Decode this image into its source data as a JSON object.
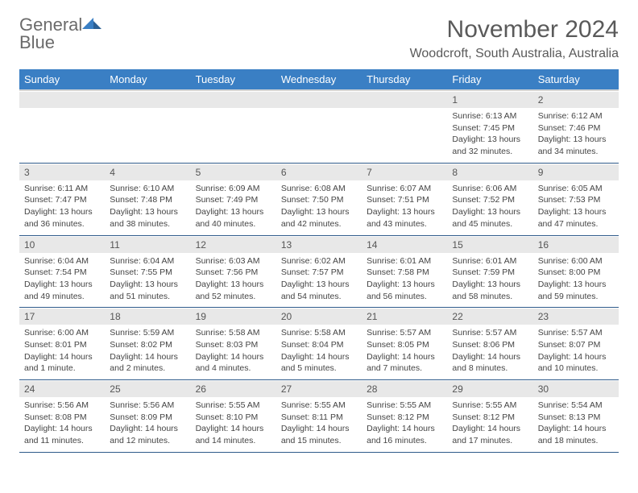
{
  "logo": {
    "word1": "General",
    "word2": "Blue"
  },
  "header": {
    "month_title": "November 2024",
    "location": "Woodcroft, South Australia, Australia"
  },
  "columns": [
    "Sunday",
    "Monday",
    "Tuesday",
    "Wednesday",
    "Thursday",
    "Friday",
    "Saturday"
  ],
  "colors": {
    "header_bg": "#3a7fc4",
    "header_text": "#ffffff",
    "daynum_bg": "#e8e8e8",
    "border": "#2f5b8a",
    "text": "#444444"
  },
  "weeks": [
    [
      null,
      null,
      null,
      null,
      null,
      {
        "n": "1",
        "sunrise": "6:13 AM",
        "sunset": "7:45 PM",
        "daylight": "13 hours and 32 minutes."
      },
      {
        "n": "2",
        "sunrise": "6:12 AM",
        "sunset": "7:46 PM",
        "daylight": "13 hours and 34 minutes."
      }
    ],
    [
      {
        "n": "3",
        "sunrise": "6:11 AM",
        "sunset": "7:47 PM",
        "daylight": "13 hours and 36 minutes."
      },
      {
        "n": "4",
        "sunrise": "6:10 AM",
        "sunset": "7:48 PM",
        "daylight": "13 hours and 38 minutes."
      },
      {
        "n": "5",
        "sunrise": "6:09 AM",
        "sunset": "7:49 PM",
        "daylight": "13 hours and 40 minutes."
      },
      {
        "n": "6",
        "sunrise": "6:08 AM",
        "sunset": "7:50 PM",
        "daylight": "13 hours and 42 minutes."
      },
      {
        "n": "7",
        "sunrise": "6:07 AM",
        "sunset": "7:51 PM",
        "daylight": "13 hours and 43 minutes."
      },
      {
        "n": "8",
        "sunrise": "6:06 AM",
        "sunset": "7:52 PM",
        "daylight": "13 hours and 45 minutes."
      },
      {
        "n": "9",
        "sunrise": "6:05 AM",
        "sunset": "7:53 PM",
        "daylight": "13 hours and 47 minutes."
      }
    ],
    [
      {
        "n": "10",
        "sunrise": "6:04 AM",
        "sunset": "7:54 PM",
        "daylight": "13 hours and 49 minutes."
      },
      {
        "n": "11",
        "sunrise": "6:04 AM",
        "sunset": "7:55 PM",
        "daylight": "13 hours and 51 minutes."
      },
      {
        "n": "12",
        "sunrise": "6:03 AM",
        "sunset": "7:56 PM",
        "daylight": "13 hours and 52 minutes."
      },
      {
        "n": "13",
        "sunrise": "6:02 AM",
        "sunset": "7:57 PM",
        "daylight": "13 hours and 54 minutes."
      },
      {
        "n": "14",
        "sunrise": "6:01 AM",
        "sunset": "7:58 PM",
        "daylight": "13 hours and 56 minutes."
      },
      {
        "n": "15",
        "sunrise": "6:01 AM",
        "sunset": "7:59 PM",
        "daylight": "13 hours and 58 minutes."
      },
      {
        "n": "16",
        "sunrise": "6:00 AM",
        "sunset": "8:00 PM",
        "daylight": "13 hours and 59 minutes."
      }
    ],
    [
      {
        "n": "17",
        "sunrise": "6:00 AM",
        "sunset": "8:01 PM",
        "daylight": "14 hours and 1 minute."
      },
      {
        "n": "18",
        "sunrise": "5:59 AM",
        "sunset": "8:02 PM",
        "daylight": "14 hours and 2 minutes."
      },
      {
        "n": "19",
        "sunrise": "5:58 AM",
        "sunset": "8:03 PM",
        "daylight": "14 hours and 4 minutes."
      },
      {
        "n": "20",
        "sunrise": "5:58 AM",
        "sunset": "8:04 PM",
        "daylight": "14 hours and 5 minutes."
      },
      {
        "n": "21",
        "sunrise": "5:57 AM",
        "sunset": "8:05 PM",
        "daylight": "14 hours and 7 minutes."
      },
      {
        "n": "22",
        "sunrise": "5:57 AM",
        "sunset": "8:06 PM",
        "daylight": "14 hours and 8 minutes."
      },
      {
        "n": "23",
        "sunrise": "5:57 AM",
        "sunset": "8:07 PM",
        "daylight": "14 hours and 10 minutes."
      }
    ],
    [
      {
        "n": "24",
        "sunrise": "5:56 AM",
        "sunset": "8:08 PM",
        "daylight": "14 hours and 11 minutes."
      },
      {
        "n": "25",
        "sunrise": "5:56 AM",
        "sunset": "8:09 PM",
        "daylight": "14 hours and 12 minutes."
      },
      {
        "n": "26",
        "sunrise": "5:55 AM",
        "sunset": "8:10 PM",
        "daylight": "14 hours and 14 minutes."
      },
      {
        "n": "27",
        "sunrise": "5:55 AM",
        "sunset": "8:11 PM",
        "daylight": "14 hours and 15 minutes."
      },
      {
        "n": "28",
        "sunrise": "5:55 AM",
        "sunset": "8:12 PM",
        "daylight": "14 hours and 16 minutes."
      },
      {
        "n": "29",
        "sunrise": "5:55 AM",
        "sunset": "8:12 PM",
        "daylight": "14 hours and 17 minutes."
      },
      {
        "n": "30",
        "sunrise": "5:54 AM",
        "sunset": "8:13 PM",
        "daylight": "14 hours and 18 minutes."
      }
    ]
  ],
  "labels": {
    "sunrise": "Sunrise:",
    "sunset": "Sunset:",
    "daylight": "Daylight:"
  }
}
